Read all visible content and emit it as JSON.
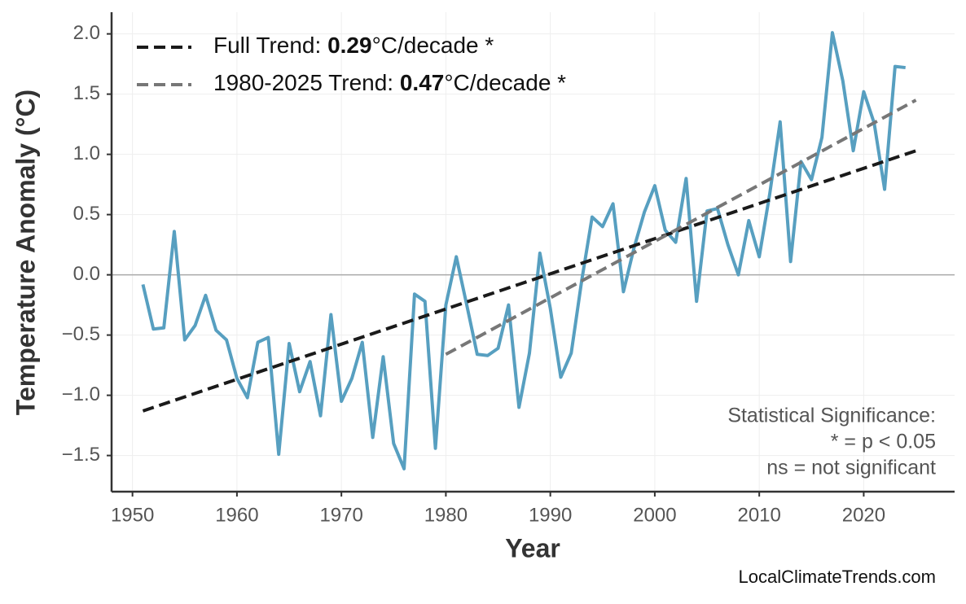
{
  "chart_data": {
    "type": "line",
    "x_label": "Year",
    "y_label": "Temperature Anomaly (°C)",
    "xlim": [
      1948,
      2028.7
    ],
    "ylim": [
      -1.8,
      2.18
    ],
    "xticks": [
      1950,
      1960,
      1970,
      1980,
      1990,
      2000,
      2010,
      2020
    ],
    "yticks": [
      {
        "value": -1.5,
        "label": "−1.5"
      },
      {
        "value": -1.0,
        "label": "−1.0"
      },
      {
        "value": -0.5,
        "label": "−0.5"
      },
      {
        "value": 0.0,
        "label": "0.0"
      },
      {
        "value": 0.5,
        "label": "0.5"
      },
      {
        "value": 1.0,
        "label": "1.0"
      },
      {
        "value": 1.5,
        "label": "1.5"
      },
      {
        "value": 2.0,
        "label": "2.0"
      }
    ],
    "grid": true,
    "zero_line": 0,
    "x": [
      1951,
      1952,
      1953,
      1954,
      1955,
      1956,
      1957,
      1958,
      1959,
      1960,
      1961,
      1962,
      1963,
      1964,
      1965,
      1966,
      1967,
      1968,
      1969,
      1970,
      1971,
      1972,
      1973,
      1974,
      1975,
      1976,
      1977,
      1978,
      1979,
      1980,
      1981,
      1982,
      1983,
      1984,
      1985,
      1986,
      1987,
      1988,
      1989,
      1990,
      1991,
      1992,
      1993,
      1994,
      1995,
      1996,
      1997,
      1998,
      1999,
      2000,
      2001,
      2002,
      2003,
      2004,
      2005,
      2006,
      2007,
      2008,
      2009,
      2010,
      2011,
      2012,
      2013,
      2014,
      2015,
      2016,
      2017,
      2018,
      2019,
      2020,
      2021,
      2022,
      2023,
      2024
    ],
    "series": [
      {
        "color": "#579fc0",
        "values": [
          -0.08,
          -0.45,
          -0.44,
          0.36,
          -0.54,
          -0.42,
          -0.17,
          -0.46,
          -0.54,
          -0.86,
          -1.02,
          -0.56,
          -0.52,
          -1.49,
          -0.57,
          -0.97,
          -0.72,
          -1.17,
          -0.33,
          -1.05,
          -0.86,
          -0.56,
          -1.35,
          -0.68,
          -1.4,
          -1.61,
          -0.16,
          -0.22,
          -1.44,
          -0.25,
          0.15,
          -0.25,
          -0.66,
          -0.67,
          -0.61,
          -0.25,
          -1.1,
          -0.65,
          0.18,
          -0.28,
          -0.85,
          -0.65,
          -0.05,
          0.48,
          0.4,
          0.59,
          -0.14,
          0.22,
          0.52,
          0.74,
          0.37,
          0.27,
          0.8,
          -0.22,
          0.53,
          0.55,
          0.25,
          0.0,
          0.45,
          0.15,
          0.67,
          1.27,
          0.11,
          0.94,
          0.79,
          1.14,
          2.01,
          1.61,
          1.03,
          1.52,
          1.26,
          0.71,
          1.73,
          1.72
        ]
      }
    ],
    "trends": [
      {
        "name": "Full Trend: ",
        "slope": 0.29,
        "unit": "°C/decade *",
        "color": "#1a1a1a",
        "x": [
          1951,
          2025
        ],
        "values": [
          -1.13,
          1.03
        ]
      },
      {
        "name": "1980-2025 Trend: ",
        "slope": 0.47,
        "unit": "°C/decade *",
        "color": "#777777",
        "x": [
          1980,
          2025
        ],
        "values": [
          -0.66,
          1.45
        ]
      }
    ],
    "annotation": [
      "Statistical Significance:",
      "* = p < 0.05",
      "ns = not significant"
    ],
    "source": "LocalClimateTrends.com"
  }
}
